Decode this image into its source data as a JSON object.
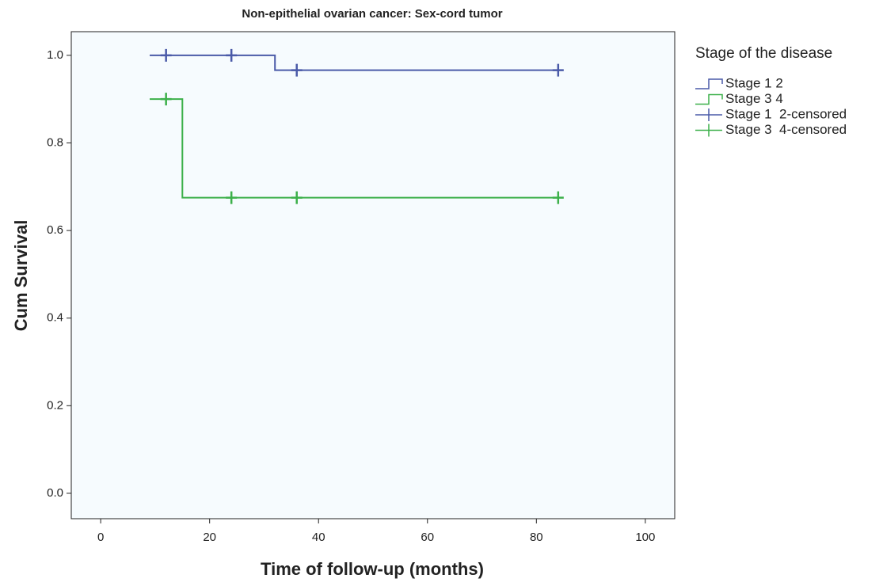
{
  "chart_data": {
    "type": "survival",
    "title": "Non-epithelial ovarian cancer: Sex-cord tumor",
    "x_label": "Time of follow-up (months)",
    "y_label": "Cum Survival",
    "legend_title": "Stage of the disease",
    "xlim": [
      -5.4,
      105.4
    ],
    "ylim": [
      -0.058,
      1.054
    ],
    "xticks": [
      0,
      20,
      40,
      60,
      80,
      100
    ],
    "yticks": [
      {
        "value": 0,
        "label": "0.0"
      },
      {
        "value": 0.2,
        "label": "0.2"
      },
      {
        "value": 0.4,
        "label": "0.4"
      },
      {
        "value": 0.6,
        "label": "0.6"
      },
      {
        "value": 0.8,
        "label": "0.8"
      },
      {
        "value": 1,
        "label": "1.0"
      }
    ],
    "series": [
      {
        "name": "Stage 1 2",
        "color": "#4a5aa8",
        "style": "step",
        "x": [
          9,
          32,
          84
        ],
        "values": [
          1.0,
          0.966,
          0.966
        ]
      },
      {
        "name": "Stage 3 4",
        "color": "#3cb04a",
        "style": "step",
        "x": [
          9,
          15,
          84
        ],
        "values": [
          0.9,
          0.675,
          0.675
        ]
      },
      {
        "name": "Stage 1  2-censored",
        "color": "#4a5aa8",
        "style": "censored",
        "x": [
          12,
          24,
          36,
          84
        ],
        "values": [
          1.0,
          1.0,
          0.966,
          0.966
        ]
      },
      {
        "name": "Stage 3  4-censored",
        "color": "#3cb04a",
        "style": "censored",
        "x": [
          12,
          24,
          36,
          84
        ],
        "values": [
          0.9,
          0.675,
          0.675,
          0.675
        ]
      }
    ]
  }
}
